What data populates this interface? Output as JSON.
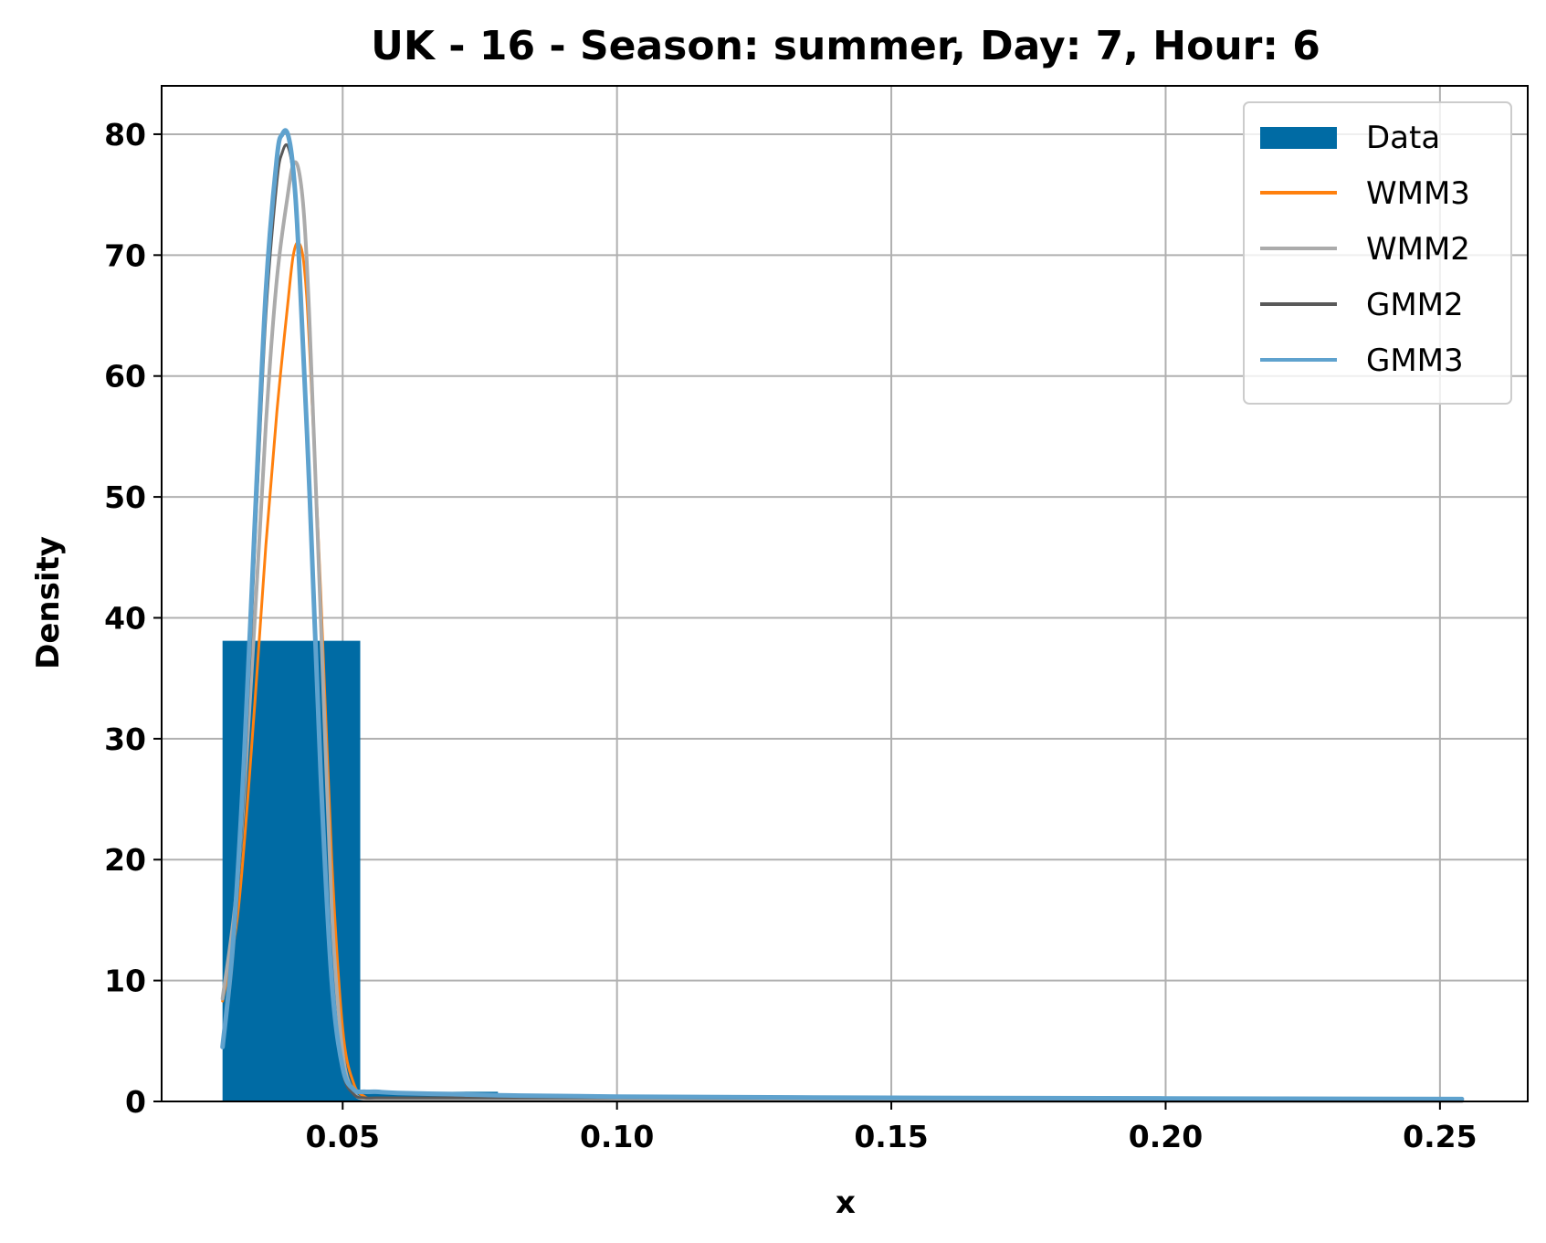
{
  "chart_data": {
    "type": "histogram",
    "title": "UK - 16 - Season: summer, Day: 7, Hour: 6",
    "xlabel": "x",
    "ylabel": "Density",
    "xlim": [
      0.017,
      0.266
    ],
    "ylim": [
      0,
      84
    ],
    "grid": true,
    "legend_position": "top-right",
    "xticks": [
      {
        "value": 0.05,
        "label": "0.05"
      },
      {
        "value": 0.1,
        "label": "0.10"
      },
      {
        "value": 0.15,
        "label": "0.15"
      },
      {
        "value": 0.2,
        "label": "0.20"
      },
      {
        "value": 0.25,
        "label": "0.25"
      }
    ],
    "yticks": [
      {
        "value": 0,
        "label": "0"
      },
      {
        "value": 10,
        "label": "10"
      },
      {
        "value": 20,
        "label": "20"
      },
      {
        "value": 30,
        "label": "30"
      },
      {
        "value": 40,
        "label": "40"
      },
      {
        "value": 50,
        "label": "50"
      },
      {
        "value": 60,
        "label": "60"
      },
      {
        "value": 70,
        "label": "70"
      },
      {
        "value": 80,
        "label": "80"
      }
    ],
    "histogram": {
      "name": "Data",
      "color": "#006ba4",
      "bins": [
        {
          "x0": 0.0281,
          "x1": 0.0532,
          "density": 38.1
        },
        {
          "x0": 0.0532,
          "x1": 0.0783,
          "density": 0.8
        },
        {
          "x0": 0.0783,
          "x1": 0.1034,
          "density": 0.0
        },
        {
          "x0": 0.1034,
          "x1": 0.1285,
          "density": 0.0
        },
        {
          "x0": 0.1285,
          "x1": 0.1536,
          "density": 0.0
        },
        {
          "x0": 0.1536,
          "x1": 0.1787,
          "density": 0.0
        },
        {
          "x0": 0.1787,
          "x1": 0.2038,
          "density": 0.0
        },
        {
          "x0": 0.2038,
          "x1": 0.2289,
          "density": 0.0
        },
        {
          "x0": 0.2289,
          "x1": 0.254,
          "density": 0.0
        }
      ]
    },
    "series": [
      {
        "name": "WMM3",
        "color": "#ff800e",
        "width": 3,
        "x": [
          0.0281,
          0.031,
          0.034,
          0.036,
          0.038,
          0.04,
          0.041,
          0.042,
          0.043,
          0.044,
          0.046,
          0.048,
          0.05,
          0.052,
          0.054,
          0.056,
          0.06,
          0.08,
          0.1,
          0.15,
          0.2,
          0.254
        ],
        "y": [
          8.3,
          16,
          33,
          46,
          57,
          66,
          70,
          71,
          69,
          62,
          42,
          20,
          6,
          1.5,
          0.4,
          0.2,
          0.15,
          0.1,
          0.1,
          0.08,
          0.06,
          0.05
        ]
      },
      {
        "name": "WMM2",
        "color": "#ababab",
        "width": 4,
        "x": [
          0.0281,
          0.031,
          0.034,
          0.036,
          0.038,
          0.04,
          0.041,
          0.042,
          0.043,
          0.044,
          0.046,
          0.048,
          0.05,
          0.052,
          0.054,
          0.056,
          0.06,
          0.08,
          0.1,
          0.15,
          0.2,
          0.254
        ],
        "y": [
          8.5,
          19,
          40,
          56,
          68,
          75,
          77.5,
          77,
          73,
          64,
          40,
          16,
          4,
          0.8,
          0.2,
          0.1,
          0.1,
          0.08,
          0.06,
          0.05,
          0.04,
          0.03
        ]
      },
      {
        "name": "GMM2",
        "color": "#595959",
        "width": 3,
        "x": [
          0.0281,
          0.03,
          0.032,
          0.034,
          0.036,
          0.038,
          0.039,
          0.04,
          0.041,
          0.042,
          0.044,
          0.046,
          0.048,
          0.05,
          0.052,
          0.054,
          0.056,
          0.06,
          0.08,
          0.1,
          0.15,
          0.2,
          0.254
        ],
        "y": [
          4.5,
          12,
          26,
          46,
          65,
          76,
          78.5,
          79,
          76.5,
          70,
          50,
          27,
          10,
          2.5,
          0.6,
          0.3,
          0.3,
          0.3,
          0.3,
          0.3,
          0.25,
          0.2,
          0.15
        ]
      },
      {
        "name": "GMM3",
        "color": "#5fa2ce",
        "width": 5,
        "x": [
          0.0281,
          0.03,
          0.032,
          0.034,
          0.036,
          0.038,
          0.039,
          0.04,
          0.041,
          0.042,
          0.044,
          0.046,
          0.048,
          0.05,
          0.052,
          0.054,
          0.056,
          0.06,
          0.07,
          0.08,
          0.1,
          0.15,
          0.2,
          0.254
        ],
        "y": [
          4.5,
          13,
          28,
          48,
          67,
          78,
          80,
          80,
          77,
          70,
          50,
          27,
          10,
          2.8,
          1.0,
          0.8,
          0.8,
          0.7,
          0.6,
          0.5,
          0.4,
          0.3,
          0.25,
          0.2
        ]
      }
    ]
  }
}
